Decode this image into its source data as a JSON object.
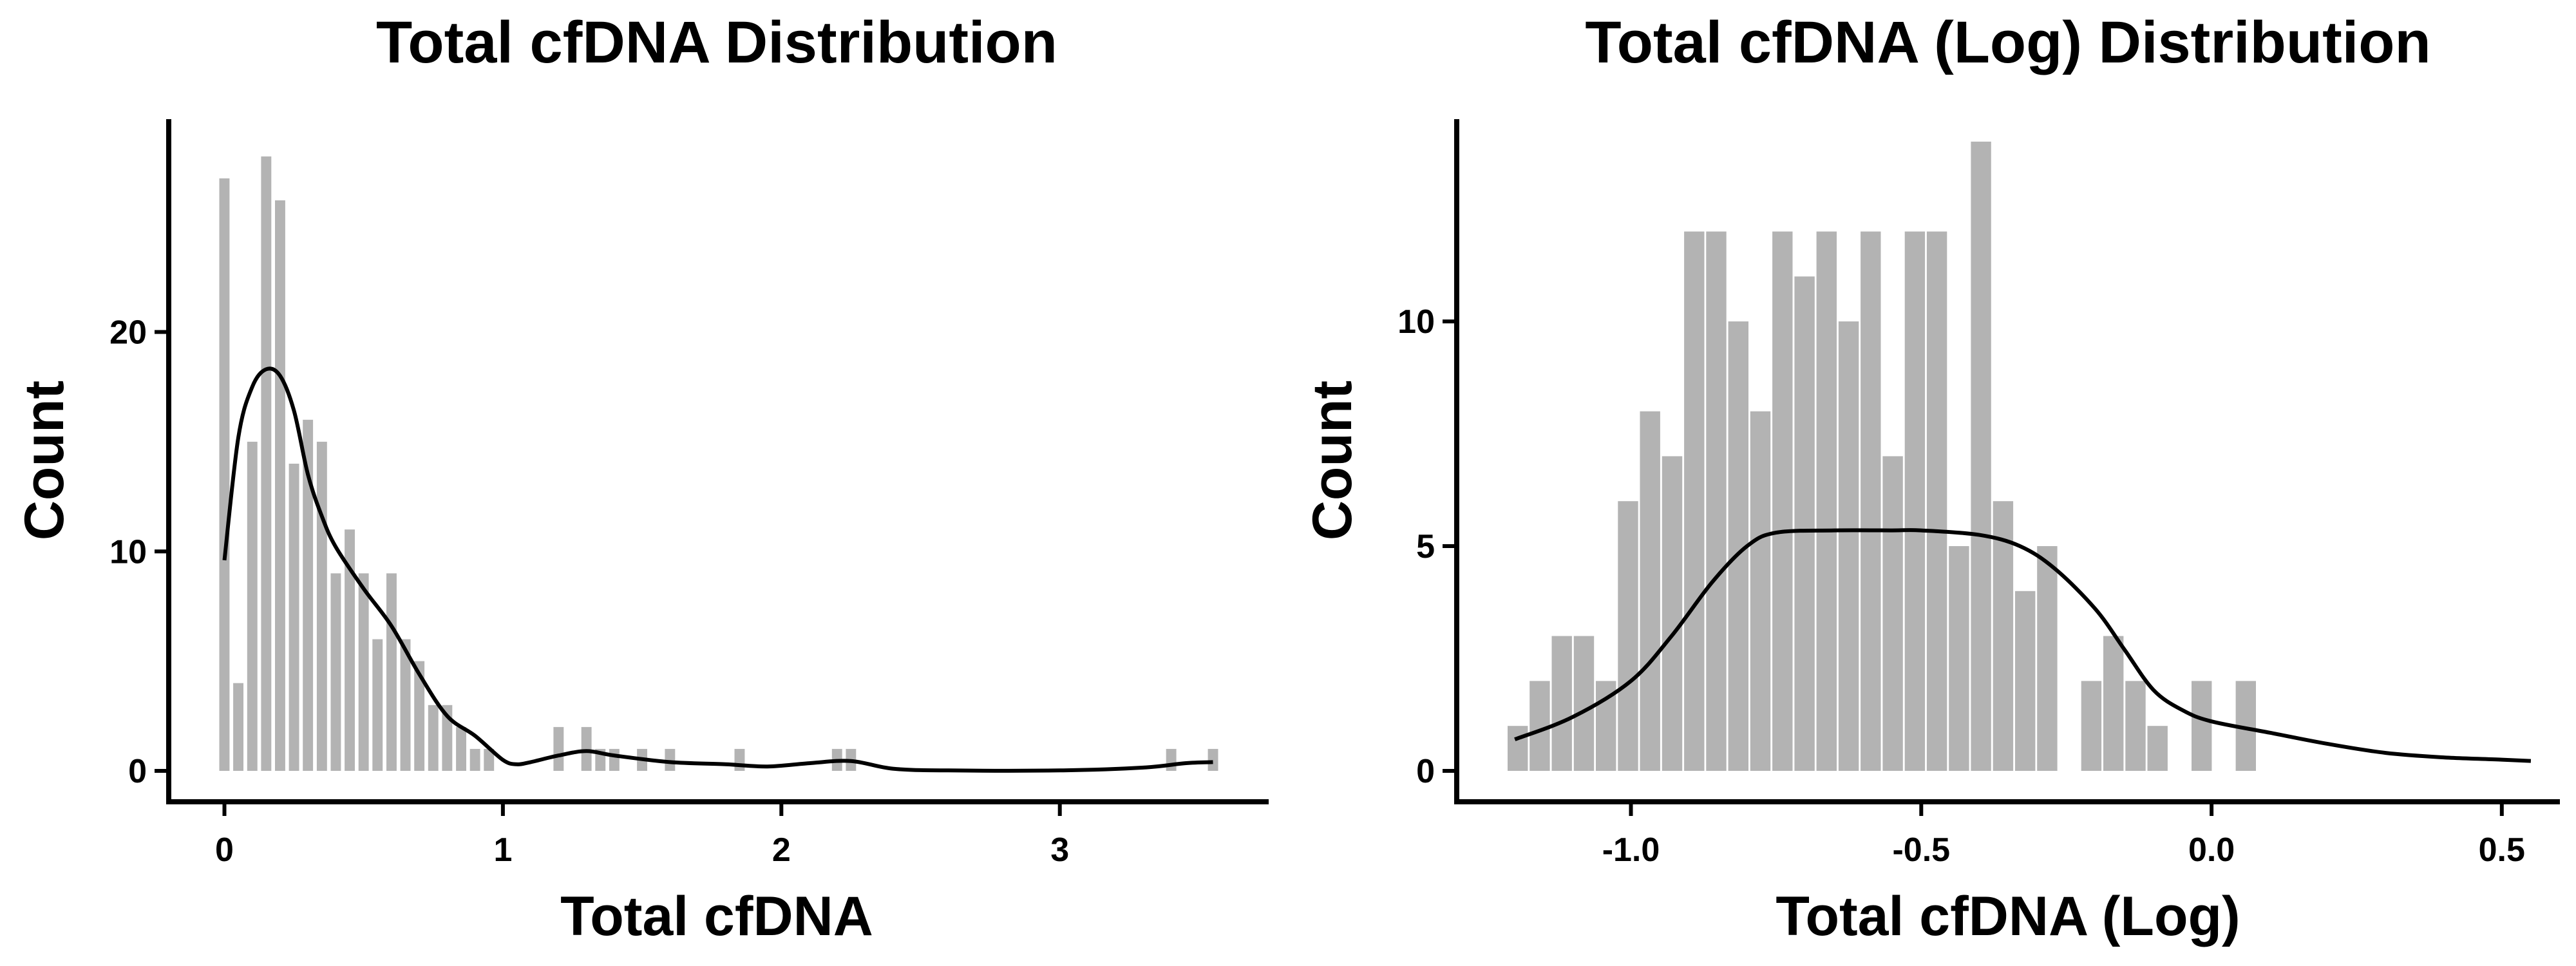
{
  "colors": {
    "bar_fill": "#b3b3b3",
    "density_line": "#000000",
    "axis": "#000000",
    "background": "#ffffff"
  },
  "chart_data": [
    {
      "type": "bar",
      "title": "Total cfDNA Distribution",
      "xlabel": "Total cfDNA",
      "ylabel": "Count",
      "xlim": [
        -0.2,
        3.75
      ],
      "ylim": [
        0,
        29.7
      ],
      "x_ticks": [
        0,
        1,
        2,
        3
      ],
      "x_tick_labels": [
        "0",
        "1",
        "2",
        "3"
      ],
      "y_ticks": [
        0,
        10,
        20
      ],
      "y_tick_labels": [
        "0",
        "10",
        "20"
      ],
      "grid": false,
      "legend": "none",
      "bin_width": 0.0368,
      "bins": [
        {
          "x": 0.0,
          "count": 27
        },
        {
          "x": 0.05,
          "count": 4
        },
        {
          "x": 0.1,
          "count": 15
        },
        {
          "x": 0.15,
          "count": 28
        },
        {
          "x": 0.2,
          "count": 26
        },
        {
          "x": 0.25,
          "count": 14
        },
        {
          "x": 0.3,
          "count": 16
        },
        {
          "x": 0.35,
          "count": 15
        },
        {
          "x": 0.4,
          "count": 9
        },
        {
          "x": 0.45,
          "count": 11
        },
        {
          "x": 0.5,
          "count": 9
        },
        {
          "x": 0.55,
          "count": 6
        },
        {
          "x": 0.6,
          "count": 9
        },
        {
          "x": 0.65,
          "count": 6
        },
        {
          "x": 0.7,
          "count": 5
        },
        {
          "x": 0.75,
          "count": 3
        },
        {
          "x": 0.8,
          "count": 3
        },
        {
          "x": 0.85,
          "count": 2
        },
        {
          "x": 0.9,
          "count": 1
        },
        {
          "x": 0.95,
          "count": 1
        },
        {
          "x": 1.2,
          "count": 2
        },
        {
          "x": 1.3,
          "count": 2
        },
        {
          "x": 1.35,
          "count": 1
        },
        {
          "x": 1.4,
          "count": 1
        },
        {
          "x": 1.5,
          "count": 1
        },
        {
          "x": 1.6,
          "count": 1
        },
        {
          "x": 1.85,
          "count": 1
        },
        {
          "x": 2.2,
          "count": 1
        },
        {
          "x": 2.25,
          "count": 1
        },
        {
          "x": 3.4,
          "count": 1
        },
        {
          "x": 3.55,
          "count": 1
        }
      ],
      "density": [
        [
          0.0,
          9.6
        ],
        [
          0.05,
          15.2
        ],
        [
          0.1,
          17.5
        ],
        [
          0.15,
          18.3
        ],
        [
          0.2,
          18.0
        ],
        [
          0.25,
          16.4
        ],
        [
          0.3,
          13.5
        ],
        [
          0.35,
          11.6
        ],
        [
          0.4,
          10.2
        ],
        [
          0.5,
          8.3
        ],
        [
          0.6,
          6.6
        ],
        [
          0.7,
          4.4
        ],
        [
          0.8,
          2.5
        ],
        [
          0.9,
          1.6
        ],
        [
          1.0,
          0.5
        ],
        [
          1.05,
          0.3
        ],
        [
          1.1,
          0.4
        ],
        [
          1.2,
          0.7
        ],
        [
          1.3,
          0.9
        ],
        [
          1.4,
          0.7
        ],
        [
          1.6,
          0.4
        ],
        [
          1.8,
          0.3
        ],
        [
          1.95,
          0.2
        ],
        [
          2.1,
          0.35
        ],
        [
          2.25,
          0.45
        ],
        [
          2.4,
          0.1
        ],
        [
          2.6,
          0.02
        ],
        [
          3.0,
          0.02
        ],
        [
          3.3,
          0.15
        ],
        [
          3.45,
          0.35
        ],
        [
          3.55,
          0.4
        ]
      ]
    },
    {
      "type": "bar",
      "title": "Total cfDNA (Log) Distribution",
      "xlabel": "Total cfDNA (Log)",
      "ylabel": "Count",
      "xlim": [
        -1.3,
        0.6
      ],
      "ylim": [
        0,
        14.5
      ],
      "x_ticks": [
        -1.0,
        -0.5,
        0.0,
        0.5
      ],
      "x_tick_labels": [
        "-1.0",
        "-0.5",
        "0.0",
        "0.5"
      ],
      "y_ticks": [
        0,
        5,
        10
      ],
      "y_tick_labels": [
        "0",
        "5",
        "10"
      ],
      "grid": false,
      "legend": "none",
      "bin_width": 0.0348,
      "bins": [
        {
          "x": -1.195,
          "count": 1
        },
        {
          "x": -1.157,
          "count": 2
        },
        {
          "x": -1.119,
          "count": 3
        },
        {
          "x": -1.081,
          "count": 3
        },
        {
          "x": -1.043,
          "count": 2
        },
        {
          "x": -1.005,
          "count": 6
        },
        {
          "x": -0.967,
          "count": 8
        },
        {
          "x": -0.929,
          "count": 7
        },
        {
          "x": -0.891,
          "count": 12
        },
        {
          "x": -0.853,
          "count": 12
        },
        {
          "x": -0.815,
          "count": 10
        },
        {
          "x": -0.777,
          "count": 8
        },
        {
          "x": -0.739,
          "count": 12
        },
        {
          "x": -0.701,
          "count": 11
        },
        {
          "x": -0.663,
          "count": 12
        },
        {
          "x": -0.625,
          "count": 10
        },
        {
          "x": -0.587,
          "count": 12
        },
        {
          "x": -0.549,
          "count": 7
        },
        {
          "x": -0.511,
          "count": 12
        },
        {
          "x": -0.473,
          "count": 12
        },
        {
          "x": -0.435,
          "count": 5
        },
        {
          "x": -0.397,
          "count": 14
        },
        {
          "x": -0.359,
          "count": 6
        },
        {
          "x": -0.321,
          "count": 4
        },
        {
          "x": -0.283,
          "count": 5
        },
        {
          "x": -0.207,
          "count": 2
        },
        {
          "x": -0.169,
          "count": 3
        },
        {
          "x": -0.131,
          "count": 2
        },
        {
          "x": -0.093,
          "count": 1
        },
        {
          "x": -0.017,
          "count": 2
        },
        {
          "x": 0.059,
          "count": 2
        }
      ],
      "density": [
        [
          -1.2,
          0.7
        ],
        [
          -1.1,
          1.2
        ],
        [
          -1.0,
          2.0
        ],
        [
          -0.93,
          3.0
        ],
        [
          -0.86,
          4.2
        ],
        [
          -0.8,
          5.0
        ],
        [
          -0.75,
          5.3
        ],
        [
          -0.65,
          5.35
        ],
        [
          -0.55,
          5.35
        ],
        [
          -0.5,
          5.35
        ],
        [
          -0.4,
          5.25
        ],
        [
          -0.33,
          5.0
        ],
        [
          -0.27,
          4.5
        ],
        [
          -0.2,
          3.6
        ],
        [
          -0.15,
          2.7
        ],
        [
          -0.1,
          1.8
        ],
        [
          -0.05,
          1.35
        ],
        [
          0.0,
          1.1
        ],
        [
          0.1,
          0.85
        ],
        [
          0.2,
          0.6
        ],
        [
          0.3,
          0.4
        ],
        [
          0.4,
          0.3
        ],
        [
          0.5,
          0.25
        ],
        [
          0.55,
          0.22
        ]
      ]
    }
  ]
}
